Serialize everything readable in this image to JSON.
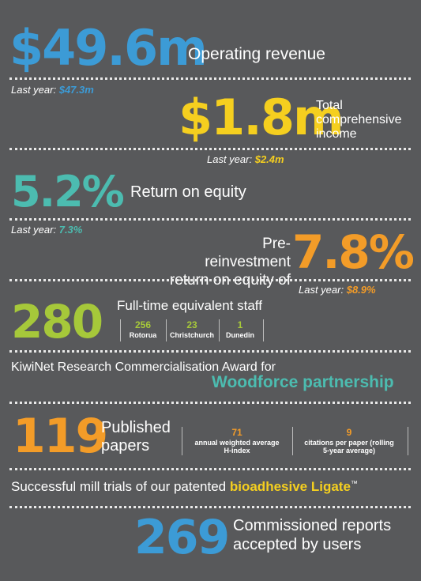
{
  "revenue": {
    "value": "$49.6m",
    "label": "Operating revenue",
    "last_year_prefix": "Last year:",
    "last_year_value": "$47.3m"
  },
  "income": {
    "value": "$1.8m",
    "label_line1": "Total",
    "label_line2": "comprehensive",
    "label_line3": "income",
    "last_year_prefix": "Last year:",
    "last_year_value": "$2.4m"
  },
  "roe": {
    "value": "5.2%",
    "label": "Return on equity",
    "last_year_prefix": "Last year:",
    "last_year_value": "7.3%"
  },
  "pre_roe": {
    "value": "7.8%",
    "label_line1": "Pre-reinvestment",
    "label_line2": "return on equity of",
    "last_year_prefix": "Last year:",
    "last_year_value": "$8.9%"
  },
  "staff": {
    "value": "280",
    "label": "Full-time equivalent staff",
    "locations": [
      {
        "count": "256",
        "name": "Rotorua"
      },
      {
        "count": "23",
        "name": "Christchurch"
      },
      {
        "count": "1",
        "name": "Dunedin"
      }
    ]
  },
  "award": {
    "line1": "KiwiNet Research Commercialisation Award for",
    "line2": "Woodforce partnership"
  },
  "papers": {
    "value": "119",
    "label_line1": "Published",
    "label_line2": "papers",
    "stats": [
      {
        "count": "71",
        "line1": "annual weighted average",
        "line2": "H-index"
      },
      {
        "count": "9",
        "line1": "citations per paper (rolling",
        "line2": "5-year average)"
      }
    ]
  },
  "mill": {
    "text": "Successful mill trials of our patented ",
    "highlight": "bioadhesive Ligate",
    "tm": "™"
  },
  "reports": {
    "value": "269",
    "label_line1": "Commissioned reports",
    "label_line2": "accepted by users"
  },
  "colors": {
    "background": "#58595b",
    "blue": "#3c9bd6",
    "yellow": "#f5cf1f",
    "teal": "#4cbcb0",
    "orange": "#f39c28",
    "green": "#a6c83a"
  }
}
